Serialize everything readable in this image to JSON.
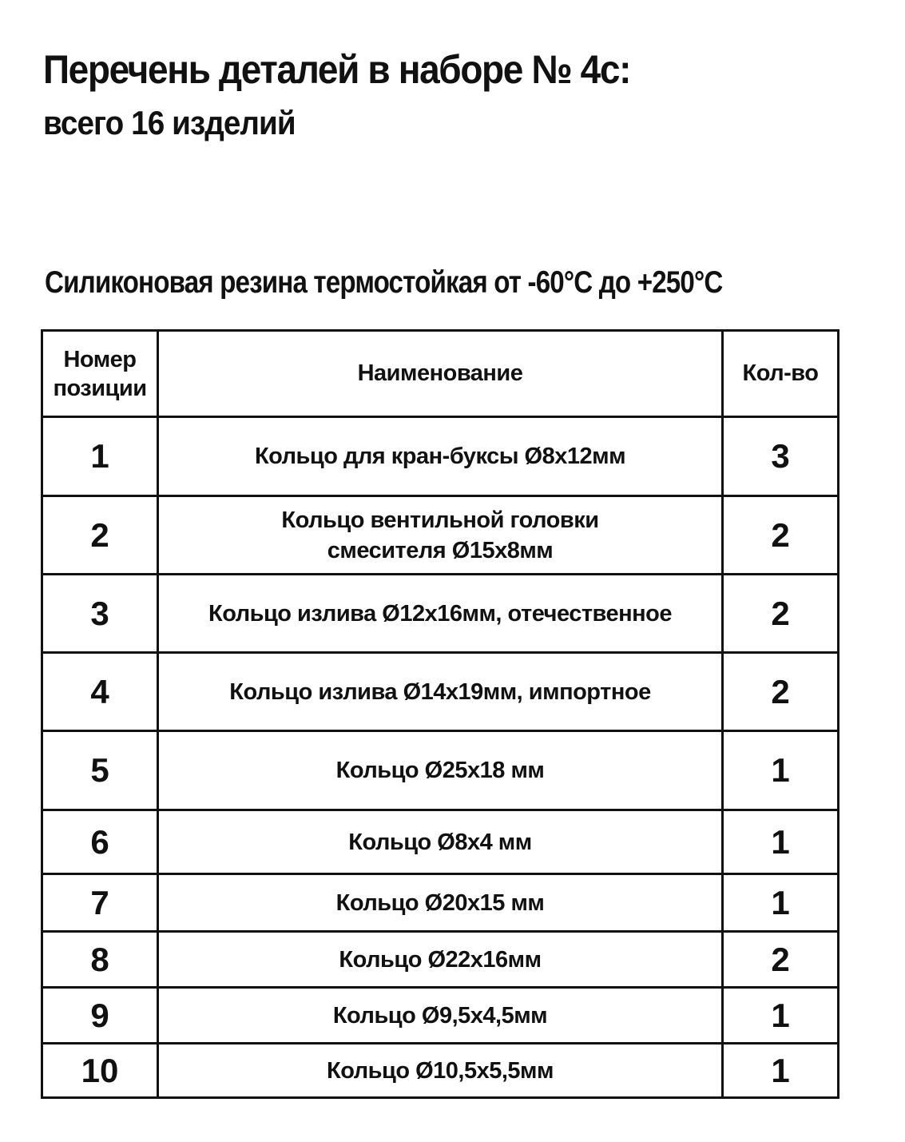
{
  "title": "Перечень деталей в наборе № 4с:",
  "subtitle": "всего 16 изделий",
  "material": "Силиконовая резина термостойкая от -60°С до +250°С",
  "table": {
    "headers": [
      "Номер позиции",
      "Наименование",
      "Кол-во"
    ],
    "rows": [
      {
        "num": "1",
        "name": "Кольцо для кран-буксы Ø8х12мм",
        "qty": "3"
      },
      {
        "num": "2",
        "name": "Кольцо вентильной головки смесителя Ø15х8мм",
        "qty": "2"
      },
      {
        "num": "3",
        "name": "Кольцо излива Ø12х16мм, отечественное",
        "qty": "2"
      },
      {
        "num": "4",
        "name": "Кольцо излива Ø14х19мм, импортное",
        "qty": "2"
      },
      {
        "num": "5",
        "name": "Кольцо Ø25х18 мм",
        "qty": "1"
      },
      {
        "num": "6",
        "name": "Кольцо Ø8х4 мм",
        "qty": "1"
      },
      {
        "num": "7",
        "name": "Кольцо Ø20х15 мм",
        "qty": "1"
      },
      {
        "num": "8",
        "name": "Кольцо Ø22х16мм",
        "qty": "2"
      },
      {
        "num": "9",
        "name": "Кольцо Ø9,5х4,5мм",
        "qty": "1"
      },
      {
        "num": "10",
        "name": "Кольцо Ø10,5х5,5мм",
        "qty": "1"
      }
    ]
  }
}
